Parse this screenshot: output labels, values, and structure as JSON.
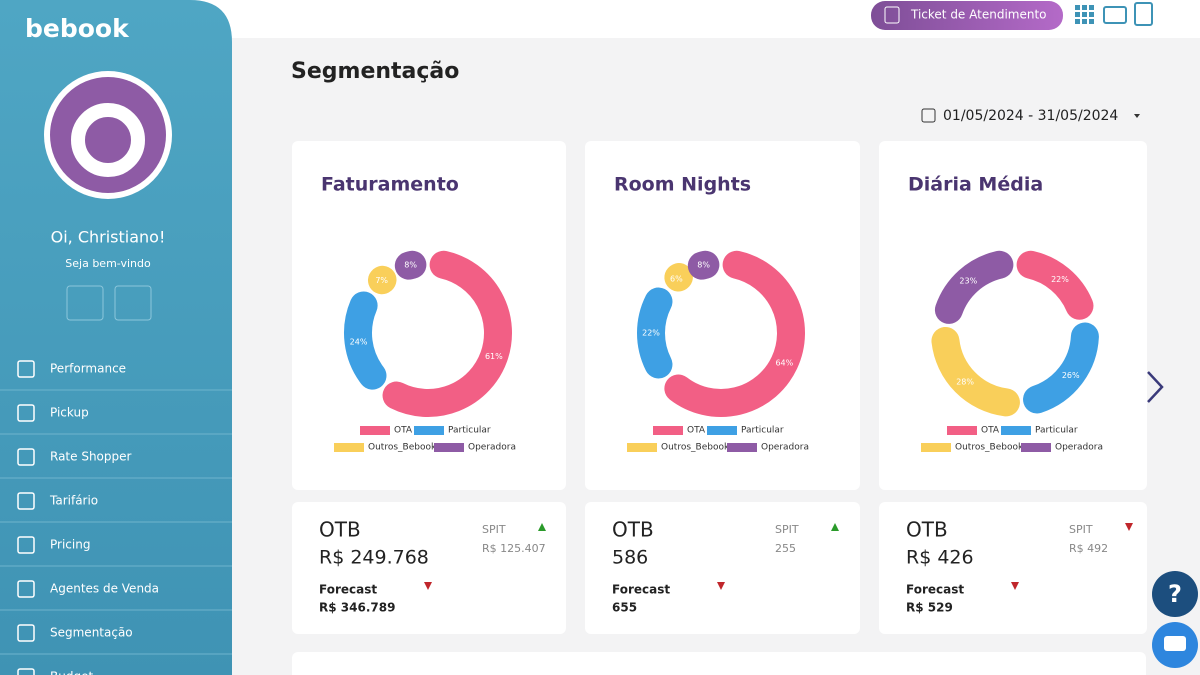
{
  "brand": "bebook",
  "header": {
    "ticket_button": "Ticket de Atendimento"
  },
  "sidebar": {
    "greeting": "Oi, Christiano!",
    "welcome": "Seja bem-vindo",
    "menu": [
      "Performance",
      "Pickup",
      "Rate Shopper",
      "Tarifário",
      "Pricing",
      "Agentes de Venda",
      "Segmentação",
      "Budget"
    ]
  },
  "page_title": "Segmentação",
  "date_range": "01/05/2024 - 31/05/2024",
  "legend": [
    {
      "name": "OTA",
      "color": "#f25f85"
    },
    {
      "name": "Particular",
      "color": "#3ea0e4"
    },
    {
      "name": "Outros_Bebook",
      "color": "#f9cf5a"
    },
    {
      "name": "Operadora",
      "color": "#8e5ba5"
    }
  ],
  "charts": [
    {
      "type": "donut",
      "title": "Faturamento",
      "values": [
        61,
        24,
        7,
        8
      ],
      "value_labels": [
        "61%",
        "24%",
        "7%",
        "8%"
      ]
    },
    {
      "type": "donut",
      "title": "Room Nights",
      "values": [
        64,
        22,
        6,
        8
      ],
      "value_labels": [
        "64%",
        "22%",
        "6%",
        "8%"
      ]
    },
    {
      "type": "donut",
      "title": "Diária Média",
      "values": [
        22,
        26,
        28,
        23
      ],
      "value_labels": [
        "22%",
        "26%",
        "28%",
        "23%"
      ]
    }
  ],
  "kpis": [
    {
      "otb_label": "OTB",
      "otb_value": "R$ 249.768",
      "spit_label": "SPIT",
      "spit_value": "R$ 125.407",
      "spit_trend": "up",
      "forecast_label": "Forecast",
      "forecast_value": "R$ 346.789",
      "forecast_trend": "down"
    },
    {
      "otb_label": "OTB",
      "otb_value": "586",
      "spit_label": "SPIT",
      "spit_value": "255",
      "spit_trend": "up",
      "forecast_label": "Forecast",
      "forecast_value": "655",
      "forecast_trend": "down"
    },
    {
      "otb_label": "OTB",
      "otb_value": "R$ 426",
      "spit_label": "SPIT",
      "spit_value": "R$ 492",
      "spit_trend": "down",
      "forecast_label": "Forecast",
      "forecast_value": "R$ 529",
      "forecast_trend": "down"
    }
  ]
}
